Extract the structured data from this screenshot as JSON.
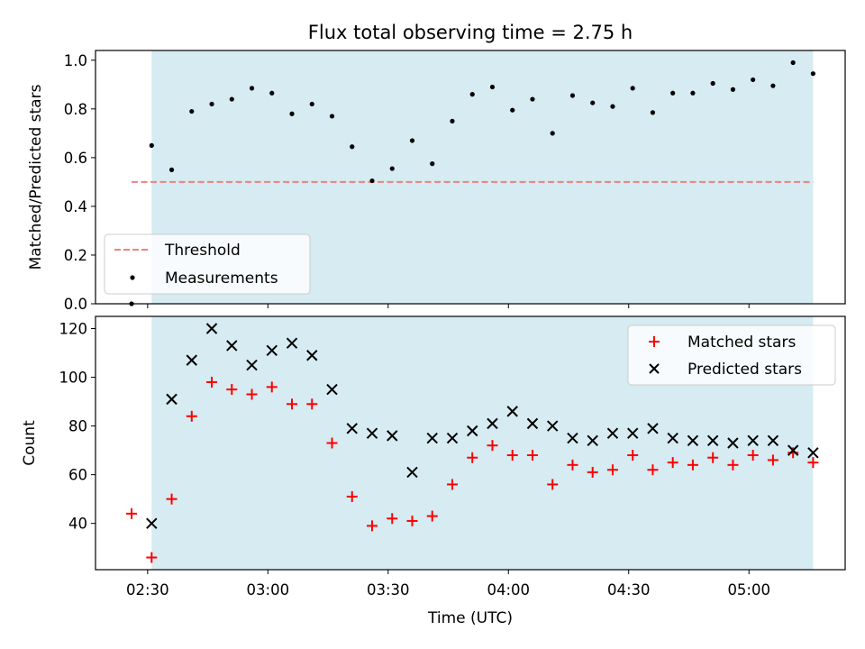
{
  "chart_data": {
    "type": "scatter",
    "title": "Flux total observing time = 2.75 h",
    "xlabel": "Time (UTC)",
    "x_tick_labels": [
      "02:30",
      "03:00",
      "03:30",
      "04:00",
      "04:30",
      "05:00"
    ],
    "x_tick_values": [
      "02:30",
      "03:00",
      "03:30",
      "04:00",
      "04:30",
      "05:00"
    ],
    "xlim": [
      "02:17",
      "05:24"
    ],
    "shaded_interval": [
      "02:31",
      "05:16"
    ],
    "shade_color": "#add8e6",
    "x": [
      "02:26",
      "02:31",
      "02:36",
      "02:41",
      "02:46",
      "02:51",
      "02:56",
      "03:01",
      "03:06",
      "03:11",
      "03:16",
      "03:21",
      "03:26",
      "03:31",
      "03:36",
      "03:41",
      "03:46",
      "03:51",
      "03:56",
      "04:01",
      "04:06",
      "04:11",
      "04:16",
      "04:21",
      "04:26",
      "04:31",
      "04:36",
      "04:41",
      "04:46",
      "04:51",
      "04:56",
      "05:01",
      "05:06",
      "05:11",
      "05:16"
    ],
    "panels": [
      {
        "ylabel": "Matched/Predicted stars",
        "ylim": [
          0,
          1.04
        ],
        "y_ticks": [
          0.0,
          0.2,
          0.4,
          0.6,
          0.8,
          1.0
        ],
        "y_tick_labels": [
          "0.0",
          "0.2",
          "0.4",
          "0.6",
          "0.8",
          "1.0"
        ],
        "legend_position": "lower-left",
        "series": [
          {
            "name": "Threshold",
            "kind": "dashed-line",
            "color": "#f08080",
            "x_range": [
              "02:26",
              "05:16"
            ],
            "value": 0.5
          },
          {
            "name": "Measurements",
            "kind": "dot",
            "color": "#000000",
            "values": [
              0.0,
              0.65,
              0.55,
              0.79,
              0.82,
              0.84,
              0.885,
              0.865,
              0.78,
              0.82,
              0.77,
              0.645,
              0.505,
              0.555,
              0.67,
              0.575,
              0.75,
              0.86,
              0.89,
              0.795,
              0.84,
              0.7,
              0.855,
              0.825,
              0.81,
              0.885,
              0.785,
              0.865,
              0.865,
              0.905,
              0.88,
              0.92,
              0.895,
              0.99,
              0.945
            ]
          }
        ]
      },
      {
        "ylabel": "Count",
        "ylim": [
          21,
          125
        ],
        "y_ticks": [
          40,
          60,
          80,
          100,
          120
        ],
        "y_tick_labels": [
          "40",
          "60",
          "80",
          "100",
          "120"
        ],
        "legend_position": "upper-right",
        "series": [
          {
            "name": "Matched stars",
            "kind": "plus",
            "color": "#ff0000",
            "values": [
              44,
              26,
              50,
              84,
              98,
              95,
              93,
              96,
              89,
              89,
              73,
              51,
              39,
              42,
              41,
              43,
              56,
              67,
              72,
              68,
              68,
              56,
              64,
              61,
              62,
              68,
              62,
              65,
              64,
              67,
              64,
              68,
              66,
              69,
              65
            ]
          },
          {
            "name": "Predicted stars",
            "kind": "x",
            "color": "#000000",
            "values": [
              null,
              40,
              91,
              107,
              120,
              113,
              105,
              111,
              114,
              109,
              95,
              79,
              77,
              76,
              61,
              75,
              75,
              78,
              81,
              86,
              81,
              80,
              75,
              74,
              77,
              77,
              79,
              75,
              74,
              74,
              73,
              74,
              74,
              70,
              69
            ]
          }
        ]
      }
    ]
  }
}
